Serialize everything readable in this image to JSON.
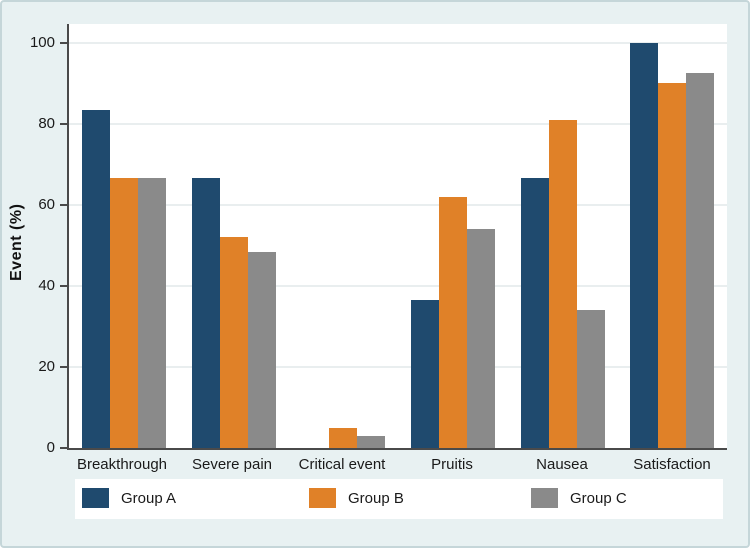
{
  "figure": {
    "background_color": "#e8f1f2",
    "plot_background_color": "#ffffff",
    "axis_color": "#4a4a4a",
    "gridline_color": "#e9eeef",
    "border_color": "#c5d6d9"
  },
  "chart_data": {
    "type": "bar",
    "title": "",
    "xlabel": "",
    "ylabel": "Event (%)",
    "categories": [
      "Breakthrough",
      "Severe pain",
      "Critical event",
      "Pruitis",
      "Nausea",
      "Satisfaction"
    ],
    "series": [
      {
        "name": "Group A",
        "color": "#1f4a6e",
        "values": [
          83.5,
          66.7,
          0,
          36.5,
          66.7,
          100
        ]
      },
      {
        "name": "Group B",
        "color": "#e08128",
        "values": [
          66.7,
          52,
          5,
          62,
          81,
          90
        ]
      },
      {
        "name": "Group C",
        "color": "#8a8a8a",
        "values": [
          66.7,
          48.5,
          3,
          54,
          34,
          92.5
        ]
      }
    ],
    "ylim": [
      0,
      105
    ],
    "yticks": [
      0,
      20,
      40,
      60,
      80,
      100
    ],
    "grid": "horizontal",
    "legend_position": "bottom"
  }
}
